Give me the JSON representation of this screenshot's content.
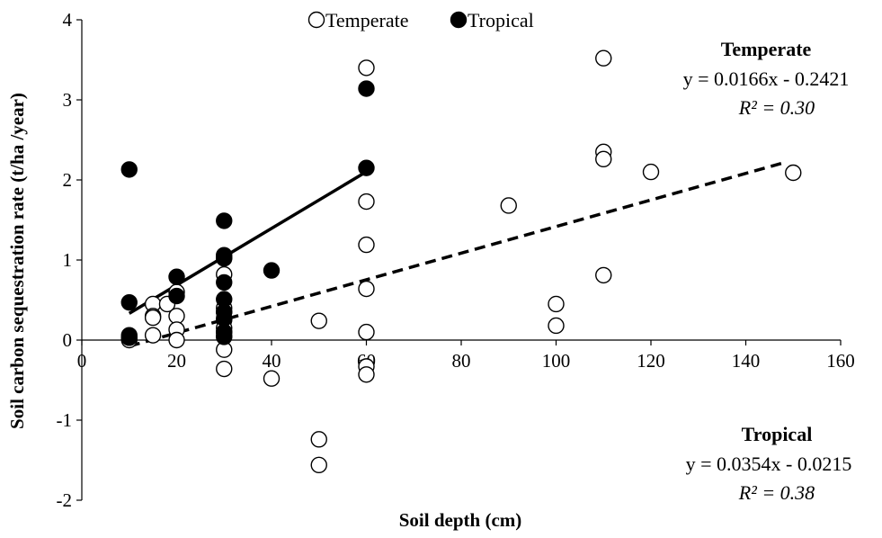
{
  "chart_data": {
    "type": "scatter",
    "title": "",
    "xlabel": "Soil depth (cm)",
    "ylabel": "Soil carbon sequestration rate (t/ha /year)",
    "xlim": [
      0,
      160
    ],
    "ylim": [
      -2,
      4
    ],
    "x_ticks": [
      "0",
      "20",
      "40",
      "60",
      "80",
      "100",
      "120",
      "140",
      "160"
    ],
    "y_ticks": [
      "-2",
      "-1",
      "0",
      "1",
      "2",
      "3",
      "4"
    ],
    "grid": false,
    "legend_position": "top-center",
    "series": [
      {
        "name": "Temperate",
        "marker": "open-circle",
        "color": "#000000",
        "points": [
          [
            10,
            0.0
          ],
          [
            10,
            0.03
          ],
          [
            15,
            0.45
          ],
          [
            15,
            0.3
          ],
          [
            15,
            0.28
          ],
          [
            15,
            0.06
          ],
          [
            18,
            0.45
          ],
          [
            20,
            0.6
          ],
          [
            20,
            0.3
          ],
          [
            20,
            0.13
          ],
          [
            20,
            0.0
          ],
          [
            30,
            1.02
          ],
          [
            30,
            0.82
          ],
          [
            30,
            0.4
          ],
          [
            30,
            0.35
          ],
          [
            30,
            0.25
          ],
          [
            30,
            0.15
          ],
          [
            30,
            0.1
          ],
          [
            30,
            0.05
          ],
          [
            30,
            -0.12
          ],
          [
            30,
            -0.36
          ],
          [
            40,
            -0.48
          ],
          [
            50,
            0.24
          ],
          [
            50,
            -1.24
          ],
          [
            50,
            -1.56
          ],
          [
            60,
            3.4
          ],
          [
            60,
            1.73
          ],
          [
            60,
            1.19
          ],
          [
            60,
            0.64
          ],
          [
            60,
            0.1
          ],
          [
            60,
            -0.33
          ],
          [
            60,
            -0.43
          ],
          [
            90,
            1.68
          ],
          [
            100,
            0.45
          ],
          [
            100,
            0.18
          ],
          [
            110,
            3.52
          ],
          [
            110,
            2.35
          ],
          [
            110,
            2.26
          ],
          [
            110,
            0.81
          ],
          [
            120,
            2.1
          ],
          [
            150,
            2.09
          ]
        ]
      },
      {
        "name": "Tropical",
        "marker": "filled-circle",
        "color": "#000000",
        "points": [
          [
            10,
            2.13
          ],
          [
            10,
            0.47
          ],
          [
            10,
            0.06
          ],
          [
            10,
            0.03
          ],
          [
            20,
            0.79
          ],
          [
            20,
            0.55
          ],
          [
            30,
            1.49
          ],
          [
            30,
            1.06
          ],
          [
            30,
            1.03
          ],
          [
            30,
            0.72
          ],
          [
            30,
            0.51
          ],
          [
            30,
            0.35
          ],
          [
            30,
            0.27
          ],
          [
            30,
            0.1
          ],
          [
            30,
            0.04
          ],
          [
            40,
            0.87
          ],
          [
            60,
            3.14
          ],
          [
            60,
            2.15
          ]
        ]
      }
    ],
    "trendlines": [
      {
        "series": "Temperate",
        "style": "dashed",
        "slope": 0.0166,
        "intercept": -0.2421,
        "x_range": [
          10,
          148
        ]
      },
      {
        "series": "Tropical",
        "style": "solid",
        "slope": 0.0354,
        "intercept": -0.0215,
        "x_range": [
          10,
          60
        ]
      }
    ],
    "annotations": {
      "temperate": {
        "title": "Temperate",
        "equation": "y = 0.0166x - 0.2421",
        "r2": "R² = 0.30"
      },
      "tropical": {
        "title": "Tropical",
        "equation": "y = 0.0354x - 0.0215",
        "r2": "R² = 0.38"
      }
    }
  }
}
